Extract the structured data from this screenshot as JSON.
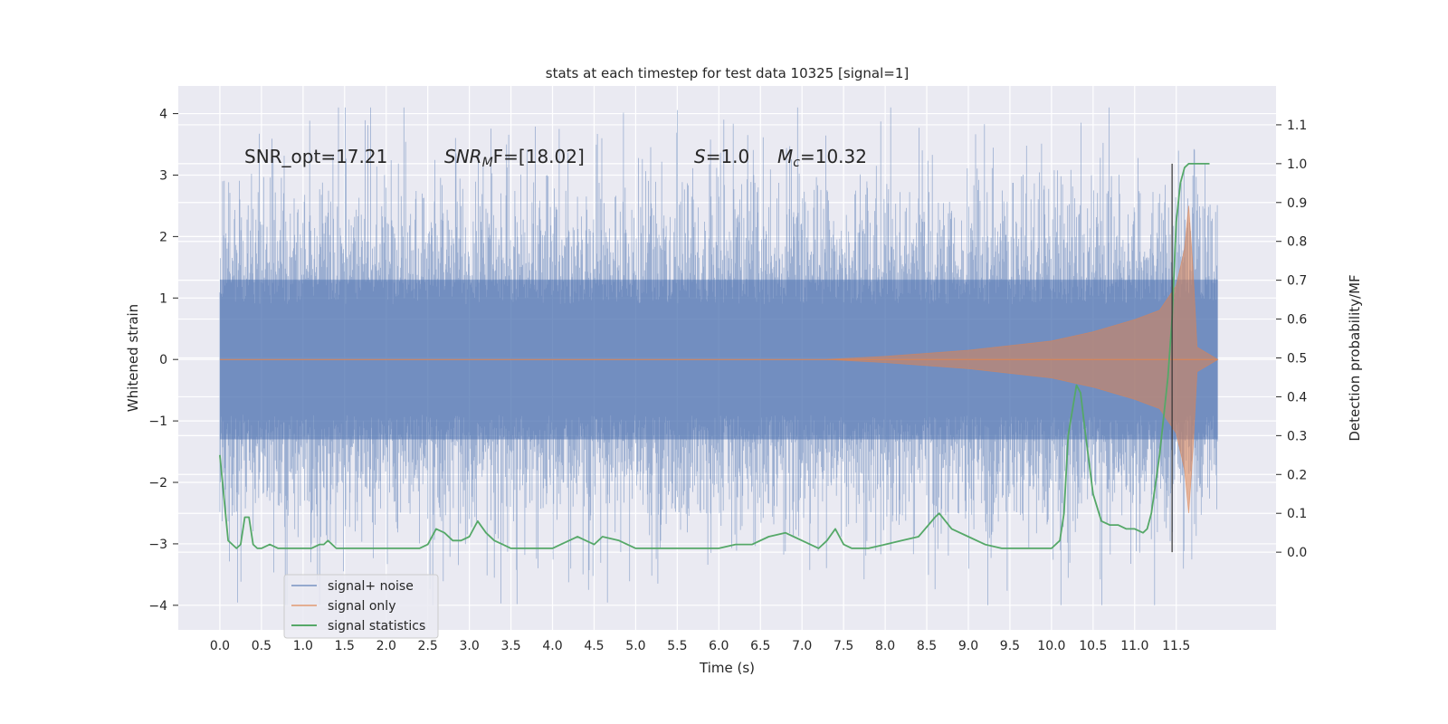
{
  "chart_data": {
    "type": "line",
    "title": "stats at each timestep for test data 10325 [signal=1]",
    "xlabel": "Time (s)",
    "ylabel": "Whitened strain",
    "y2label": "Detection probability/MF",
    "xlim": [
      -0.5,
      12.7
    ],
    "ylim": [
      -4.4,
      4.45
    ],
    "y2lim": [
      -0.2,
      1.2
    ],
    "x_ticks": [
      "0.0",
      "0.5",
      "1.0",
      "1.5",
      "2.0",
      "2.5",
      "3.0",
      "3.5",
      "4.0",
      "4.5",
      "5.0",
      "5.5",
      "6.0",
      "6.5",
      "7.0",
      "7.5",
      "8.0",
      "8.5",
      "9.0",
      "9.5",
      "10.0",
      "10.5",
      "11.0",
      "11.5"
    ],
    "y_ticks": [
      "−4",
      "−3",
      "−2",
      "−1",
      "0",
      "1",
      "2",
      "3",
      "4"
    ],
    "y2_ticks": [
      "0.0",
      "0.1",
      "0.2",
      "0.3",
      "0.4",
      "0.5",
      "0.6",
      "0.7",
      "0.8",
      "0.9",
      "1.0",
      "1.1"
    ],
    "grid": true,
    "legend_position": "lower-left",
    "annotations": [
      {
        "text": "SNR_opt=17.21",
        "italic": false
      },
      {
        "text": "SNR",
        "sub": "M",
        "rest": "F=[18.02]",
        "italic": true
      },
      {
        "text": "S",
        "rest": "=1.0",
        "italic": true
      },
      {
        "text": "M",
        "sub": "c",
        "rest": "=10.32",
        "italic": true
      }
    ],
    "merger_time": 11.45,
    "noise_envelope": {
      "t_start": 0.0,
      "t_end": 12.0,
      "typical_abs": 1.3,
      "max": 4.1,
      "min": -4.0
    },
    "signal_envelope": {
      "t": [
        7.3,
        8.0,
        9.0,
        10.0,
        10.5,
        11.0,
        11.3,
        11.5,
        11.6,
        11.65,
        11.7,
        11.75,
        12.0
      ],
      "amp": [
        0.0,
        0.05,
        0.15,
        0.3,
        0.45,
        0.65,
        0.8,
        1.2,
        1.8,
        2.5,
        1.5,
        0.2,
        0.0
      ]
    },
    "series": [
      {
        "name": "signal+ noise",
        "color": "#4c72b0",
        "display": "dense noisy strain trace (light fill)"
      },
      {
        "name": "signal only",
        "color": "#dd8452",
        "display": "chirp signal envelope"
      },
      {
        "name": "signal statistics",
        "color": "#55a868",
        "axis": "right",
        "x": [
          0.0,
          0.1,
          0.2,
          0.25,
          0.3,
          0.35,
          0.4,
          0.45,
          0.5,
          0.6,
          0.7,
          0.8,
          0.9,
          1.0,
          1.1,
          1.2,
          1.25,
          1.3,
          1.4,
          1.5,
          1.6,
          1.8,
          2.0,
          2.2,
          2.4,
          2.5,
          2.6,
          2.7,
          2.8,
          2.9,
          3.0,
          3.1,
          3.2,
          3.3,
          3.4,
          3.5,
          3.6,
          3.8,
          4.0,
          4.1,
          4.2,
          4.3,
          4.4,
          4.5,
          4.6,
          4.8,
          5.0,
          5.2,
          5.4,
          5.6,
          5.8,
          6.0,
          6.2,
          6.4,
          6.6,
          6.8,
          6.9,
          7.0,
          7.2,
          7.3,
          7.4,
          7.5,
          7.6,
          7.8,
          8.0,
          8.2,
          8.4,
          8.6,
          8.65,
          8.8,
          9.0,
          9.2,
          9.4,
          9.6,
          9.8,
          10.0,
          10.1,
          10.15,
          10.2,
          10.3,
          10.35,
          10.4,
          10.5,
          10.6,
          10.7,
          10.8,
          10.9,
          11.0,
          11.1,
          11.15,
          11.2,
          11.3,
          11.4,
          11.45,
          11.5,
          11.55,
          11.6,
          11.65,
          11.7,
          11.8,
          11.9
        ],
        "y": [
          0.25,
          0.03,
          0.01,
          0.02,
          0.09,
          0.09,
          0.02,
          0.01,
          0.01,
          0.02,
          0.01,
          0.01,
          0.01,
          0.01,
          0.01,
          0.02,
          0.02,
          0.03,
          0.01,
          0.01,
          0.01,
          0.01,
          0.01,
          0.01,
          0.01,
          0.02,
          0.06,
          0.05,
          0.03,
          0.03,
          0.04,
          0.08,
          0.05,
          0.03,
          0.02,
          0.01,
          0.01,
          0.01,
          0.01,
          0.02,
          0.03,
          0.04,
          0.03,
          0.02,
          0.04,
          0.03,
          0.01,
          0.01,
          0.01,
          0.01,
          0.01,
          0.01,
          0.02,
          0.02,
          0.04,
          0.05,
          0.04,
          0.03,
          0.01,
          0.03,
          0.06,
          0.02,
          0.01,
          0.01,
          0.02,
          0.03,
          0.04,
          0.09,
          0.1,
          0.06,
          0.04,
          0.02,
          0.01,
          0.01,
          0.01,
          0.01,
          0.03,
          0.1,
          0.3,
          0.43,
          0.41,
          0.32,
          0.15,
          0.08,
          0.07,
          0.07,
          0.06,
          0.06,
          0.05,
          0.06,
          0.1,
          0.25,
          0.45,
          0.6,
          0.85,
          0.95,
          0.99,
          1.0,
          1.0,
          1.0,
          1.0
        ]
      }
    ]
  }
}
